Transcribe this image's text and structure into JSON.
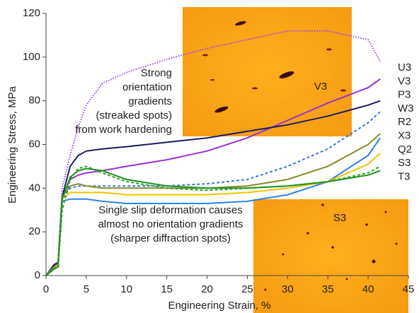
{
  "chart_data": {
    "type": "line",
    "x_label": "Engineering Strain, %",
    "y_label": "Engineering Stress, MPa",
    "x": [
      0,
      1,
      1.5,
      2,
      3,
      4,
      5,
      7,
      10,
      15,
      20,
      25,
      30,
      35,
      40,
      41.5
    ],
    "series": [
      {
        "name": "U3",
        "color": "#a040f0",
        "style": "dotted",
        "values": [
          0,
          5,
          6,
          40,
          55,
          68,
          78,
          88,
          93,
          99,
          104,
          108,
          112,
          112,
          108,
          98
        ]
      },
      {
        "name": "V3",
        "color": "#9b30d0",
        "style": "solid",
        "values": [
          0,
          4,
          6,
          36,
          44,
          46,
          47,
          48,
          50,
          53,
          57,
          63,
          71,
          79,
          86,
          90
        ]
      },
      {
        "name": "P3",
        "color": "#1c1c66",
        "style": "solid",
        "values": [
          0,
          5,
          6,
          36,
          50,
          55,
          57,
          58,
          59,
          61,
          63,
          66,
          69,
          73,
          78,
          80
        ]
      },
      {
        "name": "W3",
        "color": "#3a7ad6",
        "style": "dashed",
        "values": [
          0,
          4,
          5,
          35,
          40,
          41,
          41,
          41,
          41,
          41,
          42,
          44,
          50,
          58,
          70,
          75
        ]
      },
      {
        "name": "R2",
        "color": "#8a8a2a",
        "style": "solid",
        "values": [
          0,
          4,
          5,
          36,
          41,
          42,
          41,
          40,
          40,
          40,
          40,
          41,
          44,
          50,
          60,
          65
        ]
      },
      {
        "name": "X3",
        "color": "#2f82e6",
        "style": "solid",
        "values": [
          0,
          3,
          5,
          34,
          35,
          35,
          35,
          34,
          33,
          33,
          33,
          34,
          37,
          43,
          55,
          63
        ]
      },
      {
        "name": "Q2",
        "color": "#f2c200",
        "style": "solid",
        "values": [
          0,
          3,
          5,
          35,
          38,
          38,
          38,
          38,
          37,
          37,
          37,
          38,
          40,
          43,
          51,
          56
        ]
      },
      {
        "name": "S3",
        "color": "#2aa02a",
        "style": "dashed",
        "values": [
          0,
          3,
          4,
          30,
          44,
          49,
          50,
          47,
          43,
          40,
          39,
          40,
          41,
          43,
          47,
          50
        ]
      },
      {
        "name": "T3",
        "color": "#1d931d",
        "style": "solid",
        "values": [
          0,
          3,
          4,
          35,
          45,
          48,
          49,
          48,
          44,
          41,
          40,
          40,
          41,
          43,
          46,
          48
        ]
      }
    ],
    "xlim": [
      0,
      45
    ],
    "xticks": [
      0,
      5,
      10,
      15,
      20,
      25,
      30,
      35,
      40,
      45
    ],
    "ylim": [
      0,
      120
    ],
    "yticks": [
      0,
      20,
      40,
      60,
      80,
      100,
      120
    ],
    "grid": false,
    "annotations": [
      {
        "lines": [
          "Strong",
          "orientation",
          "gradients",
          "(streaked spots)",
          "from work hardening"
        ]
      },
      {
        "lines": [
          "Single slip deformation causes",
          "almost no orientation gradients",
          "(sharper diffraction spots)"
        ]
      }
    ],
    "insets": [
      "V3",
      "S3"
    ]
  }
}
